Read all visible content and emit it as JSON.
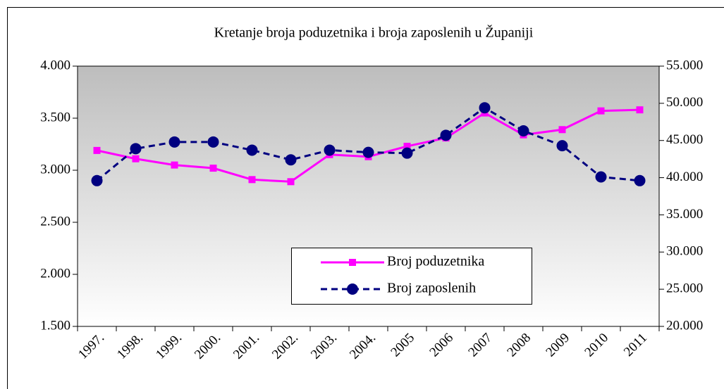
{
  "chart_data": {
    "type": "line",
    "title": "Kretanje broja poduzetnika i broja zaposlenih u Županiji",
    "categories": [
      "1997.",
      "1998.",
      "1999.",
      "2000.",
      "2001.",
      "2002.",
      "2003.",
      "2004.",
      "2005",
      "2006",
      "2007",
      "2008",
      "2009",
      "2010",
      "2011"
    ],
    "series": [
      {
        "name": "Broj poduzetnika",
        "color": "#ff00ff",
        "values": [
          3190,
          3110,
          3050,
          3020,
          2910,
          2890,
          3150,
          3130,
          3230,
          3310,
          3550,
          3340,
          3390,
          3570,
          3580
        ]
      },
      {
        "name": "Broj zaposlenih",
        "color": "#000080",
        "axis": "y2",
        "values": [
          39600,
          43900,
          44800,
          44800,
          43700,
          42400,
          43700,
          43400,
          43300,
          45700,
          49400,
          46300,
          44300,
          40100,
          39600
        ]
      }
    ],
    "ylim": [
      1500,
      4000
    ],
    "yticks": [
      {
        "value": 1500,
        "label": "1.500"
      },
      {
        "value": 2000,
        "label": "2.000"
      },
      {
        "value": 2500,
        "label": "2.500"
      },
      {
        "value": 3000,
        "label": "3.000"
      },
      {
        "value": 3500,
        "label": "3.500"
      },
      {
        "value": 4000,
        "label": "4.000"
      }
    ],
    "y2lim": [
      20000,
      55000
    ],
    "y2ticks": [
      {
        "value": 20000,
        "label": "20.000"
      },
      {
        "value": 25000,
        "label": "25.000"
      },
      {
        "value": 30000,
        "label": "30.000"
      },
      {
        "value": 35000,
        "label": "35.000"
      },
      {
        "value": 40000,
        "label": "40.000"
      },
      {
        "value": 45000,
        "label": "45.000"
      },
      {
        "value": 50000,
        "label": "50.000"
      },
      {
        "value": 55000,
        "label": "55.000"
      }
    ]
  }
}
